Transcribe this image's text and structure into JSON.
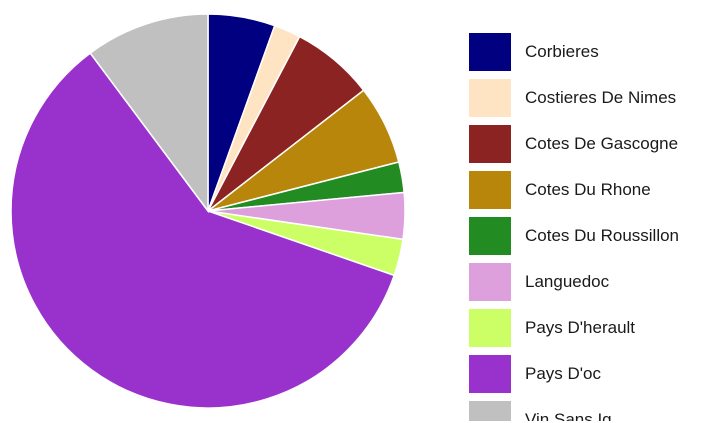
{
  "chart_data": {
    "type": "pie",
    "title": "",
    "legend_position": "right",
    "start_angle_deg": 0,
    "direction": "clockwise",
    "slices": [
      {
        "label": "Corbieres",
        "value": 5.5,
        "color": "#000080"
      },
      {
        "label": "Costieres De Nimes",
        "value": 2.2,
        "color": "#FFE4C4"
      },
      {
        "label": "Cotes De Gascogne",
        "value": 6.8,
        "color": "#8B2323"
      },
      {
        "label": "Cotes Du Rhone",
        "value": 6.5,
        "color": "#B8860B"
      },
      {
        "label": "Cotes Du Roussillon",
        "value": 2.5,
        "color": "#228B22"
      },
      {
        "label": "Languedoc",
        "value": 3.8,
        "color": "#DDA0DD"
      },
      {
        "label": "Pays D'herault",
        "value": 3.0,
        "color": "#CCFF66"
      },
      {
        "label": "Pays D'oc",
        "value": 59.5,
        "color": "#9932CC"
      },
      {
        "label": "Vin Sans Ig",
        "value": 10.2,
        "color": "#C0C0C0"
      }
    ]
  }
}
